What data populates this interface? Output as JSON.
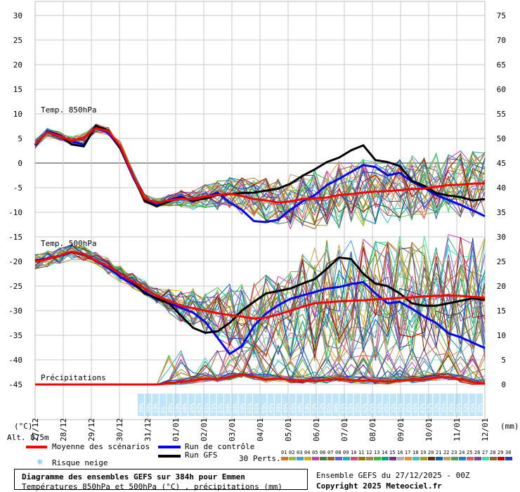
{
  "chart_data": {
    "type": "line",
    "title": "Diagramme des ensembles GEFS sur 384h pour Emmen",
    "subtitle": "Températures 850hPa et 500hPa (°C) , précipitations (mm)",
    "left_axis": {
      "label": "(°C)",
      "ylim": [
        -45,
        30
      ],
      "ticks": [
        "30",
        "25",
        "20",
        "15",
        "10",
        "5",
        "0",
        "-5",
        "-10",
        "-15",
        "-20",
        "-25",
        "-30",
        "-35",
        "-40",
        "-45"
      ]
    },
    "right_axis": {
      "label": "(mm)",
      "ylim": [
        0,
        75
      ],
      "ticks": [
        "75",
        "70",
        "65",
        "60",
        "55",
        "50",
        "45",
        "40",
        "35",
        "30",
        "25",
        "20",
        "15",
        "10",
        "5",
        "0"
      ]
    },
    "x_ticks": [
      "27/12",
      "28/12",
      "29/12",
      "30/12",
      "31/12",
      "01/01",
      "02/01",
      "03/01",
      "04/01",
      "05/01",
      "06/01",
      "07/01",
      "08/01",
      "09/01",
      "10/01",
      "11/01",
      "12/01"
    ],
    "altitude": "Alt. 875m",
    "section_labels": {
      "t850": "Temp. 850hPa",
      "t500": "Temp. 500hPa",
      "precip": "Précipitations"
    },
    "t850_mean": [
      3.8,
      6.3,
      5.5,
      4.5,
      5.2,
      7.1,
      6.5,
      3.5,
      -2.2,
      -7.2,
      -8.1,
      -7.6,
      -7.2,
      -7.4,
      -6.8,
      -6.5,
      -6.2,
      -6.7,
      -7.3,
      -7.6,
      -8.0,
      -7.8,
      -7.3,
      -7.2,
      -7.0,
      -6.5,
      -6.3,
      -6.0,
      -5.8,
      -5.7,
      -5.5,
      -5.3,
      -5.2,
      -4.8,
      -4.5,
      -4.4,
      -4.2,
      -4.1
    ],
    "t850_control": [
      3.6,
      6.5,
      5.7,
      4.4,
      3.8,
      7.2,
      6.2,
      3.0,
      -2.5,
      -7.5,
      -8.6,
      -7.5,
      -6.8,
      -7.8,
      -7.0,
      -6.0,
      -8.0,
      -9.5,
      -11.8,
      -12.0,
      -11.5,
      -9.5,
      -7.8,
      -6.5,
      -4.5,
      -3.2,
      -1.8,
      -0.4,
      -0.8,
      -2.5,
      -2.0,
      -3.8,
      -5.0,
      -6.5,
      -7.5,
      -8.5,
      -9.6,
      -10.8
    ],
    "t850_gfs": [
      3.7,
      6.3,
      5.6,
      3.8,
      3.4,
      7.6,
      6.6,
      3.1,
      -2.2,
      -7.7,
      -8.8,
      -7.8,
      -7.0,
      -7.6,
      -7.2,
      -6.5,
      -6.3,
      -6.1,
      -6.0,
      -5.6,
      -5.2,
      -4.2,
      -2.6,
      -1.3,
      0.2,
      1.1,
      2.6,
      3.6,
      0.6,
      0.2,
      -0.6,
      -3.6,
      -4.6,
      -6.1,
      -6.6,
      -6.9,
      -7.6,
      -7.3
    ],
    "t500_mean": [
      -20.0,
      -19.5,
      -18.8,
      -18.0,
      -18.5,
      -19.8,
      -21.0,
      -22.5,
      -24.0,
      -25.5,
      -27.0,
      -28.0,
      -29.0,
      -29.5,
      -30.0,
      -30.5,
      -30.9,
      -31.2,
      -31.6,
      -31.4,
      -30.8,
      -30.0,
      -29.2,
      -28.5,
      -28.3,
      -28.1,
      -28.0,
      -27.9,
      -27.7,
      -27.6,
      -27.4,
      -27.3,
      -27.1,
      -27.0,
      -26.9,
      -27.0,
      -27.2,
      -27.4
    ],
    "t500_control": [
      -19.8,
      -19.4,
      -18.9,
      -18.1,
      -18.6,
      -19.9,
      -21.3,
      -23.1,
      -24.6,
      -26.2,
      -27.6,
      -28.5,
      -29.4,
      -30.4,
      -32.3,
      -35.5,
      -38.8,
      -37.2,
      -33.1,
      -30.6,
      -28.9,
      -27.6,
      -26.9,
      -26.2,
      -25.5,
      -25.2,
      -24.6,
      -24.2,
      -26.5,
      -28.5,
      -28.2,
      -29.6,
      -31.2,
      -32.5,
      -34.6,
      -35.4,
      -36.5,
      -37.6
    ],
    "t500_gfs": [
      -19.9,
      -19.5,
      -18.8,
      -18.0,
      -18.6,
      -19.8,
      -21.0,
      -22.4,
      -24.1,
      -26.5,
      -27.5,
      -28.5,
      -31.0,
      -33.5,
      -34.5,
      -34.2,
      -32.5,
      -30.0,
      -28.2,
      -26.5,
      -26.0,
      -25.5,
      -24.5,
      -23.6,
      -21.5,
      -19.2,
      -19.5,
      -22.5,
      -24.5,
      -25.0,
      -26.5,
      -28.5,
      -29.0,
      -29.0,
      -28.5,
      -28.0,
      -27.5,
      -27.8
    ],
    "precip_mean": [
      0,
      0,
      0,
      0,
      0,
      0,
      0,
      0,
      0,
      0,
      0,
      0.2,
      0.5,
      0.8,
      1.2,
      1.0,
      1.5,
      2.0,
      1.6,
      1.0,
      1.2,
      0.9,
      0.8,
      0.7,
      0.9,
      1.1,
      0.9,
      0.8,
      0.7,
      0.6,
      0.8,
      0.9,
      1.0,
      1.4,
      1.5,
      1.0,
      0.5,
      0.2
    ],
    "snow_risk_values": [
      "38%",
      "30%",
      "19%",
      "6%",
      "48%",
      "58%",
      "48%",
      "45%",
      "42%",
      "61%",
      "71%",
      "87%",
      "84%",
      "84%",
      "68%",
      "61%",
      "61%",
      "55%",
      "45%",
      "39%",
      "45%",
      "45%",
      "48%",
      "58%",
      "52%",
      "52%",
      "65%",
      "48%",
      "61%",
      "55%",
      "35%",
      "42%",
      "45%",
      "42%",
      "45%",
      "32%",
      "35%",
      "35%",
      "45%",
      "42%",
      "42%",
      "32%",
      "35%",
      "35%",
      "35%",
      "32%",
      "35%",
      "35%"
    ],
    "legend": {
      "mean": "Moyenne des scénarios",
      "control": "Run de contrôle",
      "gfs": "Run GFS",
      "snow": "Risque neige",
      "perts_label": "30 Perts.",
      "perts_numbers": [
        "01",
        "02",
        "03",
        "04",
        "05",
        "06",
        "07",
        "08",
        "09",
        "10",
        "11",
        "12",
        "13",
        "14",
        "15",
        "16",
        "17",
        "18",
        "19",
        "20",
        "21",
        "22",
        "23",
        "24",
        "25",
        "26",
        "27",
        "28",
        "29",
        "30"
      ]
    },
    "info": {
      "ensemble": "Ensemble GEFS du 27/12/2025 - 00Z",
      "copyright": "Copyright 2025 Meteociel.fr"
    }
  },
  "colors": {
    "mean": "#ff0000",
    "control": "#0000ff",
    "gfs": "#000000",
    "grid": "#c8c8c8",
    "snow": "#8ccff0",
    "perts": [
      "#e07020",
      "#90c040",
      "#40a0e0",
      "#d0b000",
      "#c040c0",
      "#408040",
      "#a06020",
      "#6060e0",
      "#20b0b0",
      "#e04080",
      "#808000",
      "#b08040",
      "#30c030",
      "#00a080",
      "#703090",
      "#b0b0b0",
      "#e09040",
      "#40c0c0",
      "#a0a020",
      "#603000",
      "#0060b0",
      "#c0a060",
      "#50a050",
      "#2080c0",
      "#d06060",
      "#8040a0",
      "#40e0a0",
      "#906030",
      "#c00000",
      "#2040c0"
    ]
  }
}
